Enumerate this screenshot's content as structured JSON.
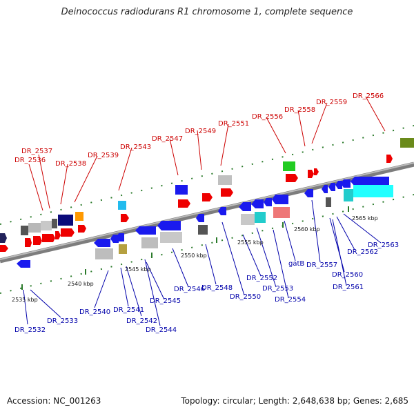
{
  "title": "Deinococcus radiodurans R1 chromosome 1, complete sequence",
  "footer": {
    "accession": "Accession: NC_001263",
    "summary": "Topology: circular; Length: 2,648,638 bp; Genes: 2,685"
  },
  "colors": {
    "forward_label": "#cc0000",
    "reverse_label": "#0000aa",
    "leader_red": "#cc0000",
    "leader_blue": "#0000aa",
    "backbone": "#808080",
    "tick_green": "#2a7a2a",
    "forward_gene": "#ee0000",
    "reverse_gene": "#1a1aee"
  },
  "scale_labels": [
    "2535 kbp",
    "2540 kbp",
    "2545 kbp",
    "2550 kbp",
    "2555 kbp",
    "2560 kbp",
    "2565 kbp"
  ],
  "top_labels": [
    "DR_2536",
    "DR_2537",
    "DR_2538",
    "DR_2539",
    "DR_2543",
    "DR_2547",
    "DR_2549",
    "DR_2551",
    "DR_2556",
    "DR_2558",
    "DR_2559",
    "DR_2566"
  ],
  "bottom_labels": [
    "DR_2532",
    "DR_2533",
    "DR_2540",
    "DR_2541",
    "DR_2542",
    "DR_2544",
    "DR_2545",
    "DR_2546",
    "DR_2548",
    "DR_2550",
    "DR_2552",
    "DR_2553",
    "DR_2554",
    "gatB",
    "DR_2557",
    "DR_2560",
    "DR_2561",
    "DR_2562",
    "DR_2563"
  ]
}
